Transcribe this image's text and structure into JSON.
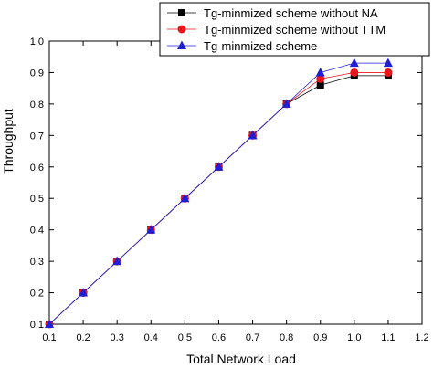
{
  "chart_data": {
    "type": "line",
    "title": "",
    "xlabel": "Total Network Load",
    "ylabel": "Throughput",
    "xlim": [
      0.1,
      1.2
    ],
    "ylim": [
      0.1,
      1.0
    ],
    "xticks": [
      "0.1",
      "0.2",
      "0.3",
      "0.4",
      "0.5",
      "0.6",
      "0.7",
      "0.8",
      "0.9",
      "1.0",
      "1.1",
      "1.2"
    ],
    "yticks": [
      "0.1",
      "0.2",
      "0.3",
      "0.4",
      "0.5",
      "0.6",
      "0.7",
      "0.8",
      "0.9",
      "1.0"
    ],
    "grid": false,
    "legend_position": "top-right",
    "x": [
      0.1,
      0.2,
      0.3,
      0.4,
      0.5,
      0.6,
      0.7,
      0.8,
      0.9,
      1.0,
      1.1
    ],
    "series": [
      {
        "name": "Tg-minmized scheme without NA",
        "marker": "square",
        "color": "#000000",
        "values": [
          0.1,
          0.2,
          0.3,
          0.4,
          0.5,
          0.6,
          0.7,
          0.8,
          0.86,
          0.89,
          0.89
        ]
      },
      {
        "name": "Tg-minmized scheme without TTM",
        "marker": "circle",
        "color": "#e8141b",
        "values": [
          0.1,
          0.2,
          0.3,
          0.4,
          0.5,
          0.6,
          0.7,
          0.8,
          0.88,
          0.9,
          0.9
        ]
      },
      {
        "name": "Tg-minmized scheme",
        "marker": "triangle",
        "color": "#1f1fd6",
        "values": [
          0.1,
          0.2,
          0.3,
          0.4,
          0.5,
          0.6,
          0.7,
          0.8,
          0.9,
          0.93,
          0.93
        ]
      }
    ]
  }
}
